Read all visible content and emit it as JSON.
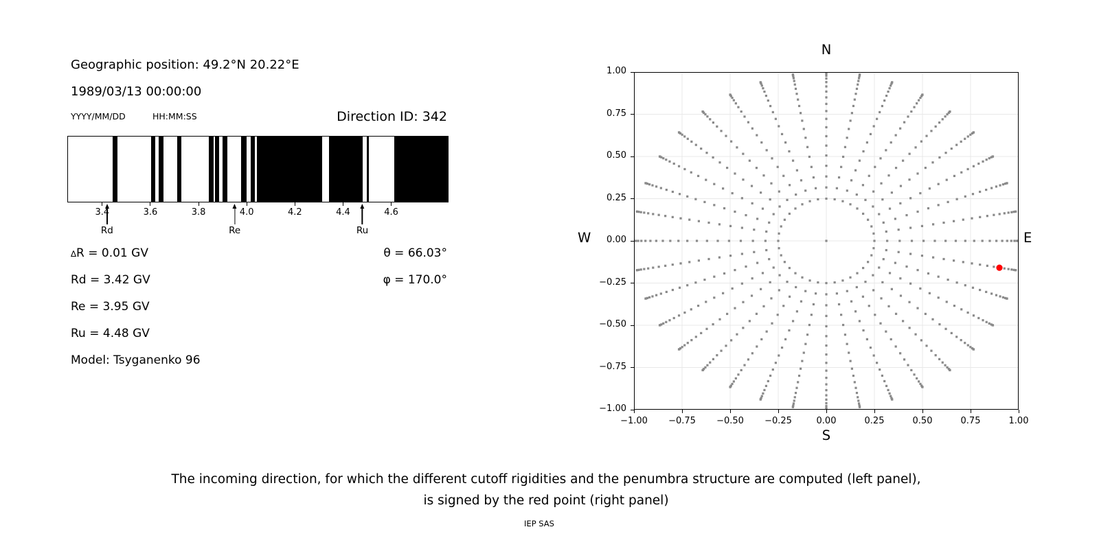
{
  "header": {
    "geo_position": "Geographic position: 49.2°N 20.22°E",
    "datetime": "1989/03/13 00:00:00",
    "date_format_label": "YYYY/MM/DD",
    "time_format_label": "HH:MM:SS",
    "direction_id": "Direction ID: 342"
  },
  "params": {
    "delta_symbol": "∆",
    "delta_rest": "R = 0.01 GV",
    "rd": "Rd = 3.42 GV",
    "re": "Re = 3.95 GV",
    "ru": "Ru = 4.48 GV",
    "model": "Model: Tsyganenko 96",
    "theta": "θ = 66.03°",
    "phi": "φ = 170.0°"
  },
  "caption": {
    "line1": "The incoming direction, for which the different cutoff rigidities and the penumbra structure are computed (left panel),",
    "line2": "is signed by the red point (right panel)",
    "credit": "IEP SAS"
  },
  "chart_data": [
    {
      "id": "penumbra-structure",
      "type": "bar",
      "description": "Penumbra structure barcode: black bands over white background along rigidity axis (GV)",
      "xlim": [
        3.255,
        4.838
      ],
      "x_ticks": [
        3.4,
        3.6,
        3.8,
        4.0,
        4.2,
        4.4,
        4.6
      ],
      "x_tick_labels": [
        "3.4",
        "3.6",
        "3.8",
        "4.0",
        "4.2",
        "4.4",
        "4.6"
      ],
      "black_bands_gv": [
        [
          3.44,
          3.462
        ],
        [
          3.6,
          3.618
        ],
        [
          3.632,
          3.652
        ],
        [
          3.71,
          3.728
        ],
        [
          3.843,
          3.862
        ],
        [
          3.868,
          3.886
        ],
        [
          3.9,
          3.918
        ],
        [
          3.976,
          4.0
        ],
        [
          4.017,
          4.034
        ],
        [
          4.043,
          4.314
        ],
        [
          4.342,
          4.482
        ],
        [
          4.499,
          4.51
        ],
        [
          4.616,
          4.838
        ]
      ],
      "markers": [
        {
          "label": "Rd",
          "gv": 3.42
        },
        {
          "label": "Re",
          "gv": 3.95
        },
        {
          "label": "Ru",
          "gv": 4.48
        }
      ],
      "colors": {
        "band": "#000000",
        "background": "#ffffff"
      }
    },
    {
      "id": "incoming-directions",
      "type": "scatter",
      "description": "Grid of incoming directions: 36 radial spokes every 10 deg azimuth, r = sin(zenith), zenith 14.48..90 deg, plus center point; selected direction marked red",
      "compass": {
        "n": "N",
        "s": "S",
        "e": "E",
        "w": "W"
      },
      "xlim": [
        -1,
        1
      ],
      "ylim": [
        -1,
        1
      ],
      "x_tick_labels": [
        "−1.00",
        "−0.75",
        "−0.50",
        "−0.25",
        "0.00",
        "0.25",
        "0.50",
        "0.75",
        "1.00"
      ],
      "y_tick_labels": [
        "1.00",
        "0.75",
        "0.50",
        "0.25",
        "0.00",
        "−0.25",
        "−0.50",
        "−0.75",
        "−1.00"
      ],
      "grid": true,
      "grid_color": "#e8e8e8",
      "dot_color": "#8a8a8a",
      "generator": {
        "azimuth_start_deg": 0,
        "azimuth_step_deg": 10,
        "azimuth_count": 36,
        "zenith_min_deg": 14.48,
        "zenith_max_deg": 90,
        "zenith_count": 20,
        "include_center_point": true,
        "x": "sin(zenith)*sin(azimuth)",
        "y": "sin(zenith)*cos(azimuth)"
      },
      "red_point": {
        "x": 0.9,
        "y": -0.159,
        "azimuth_deg": 100,
        "zenith_deg": 66.03,
        "color": "#ff0000"
      }
    }
  ]
}
